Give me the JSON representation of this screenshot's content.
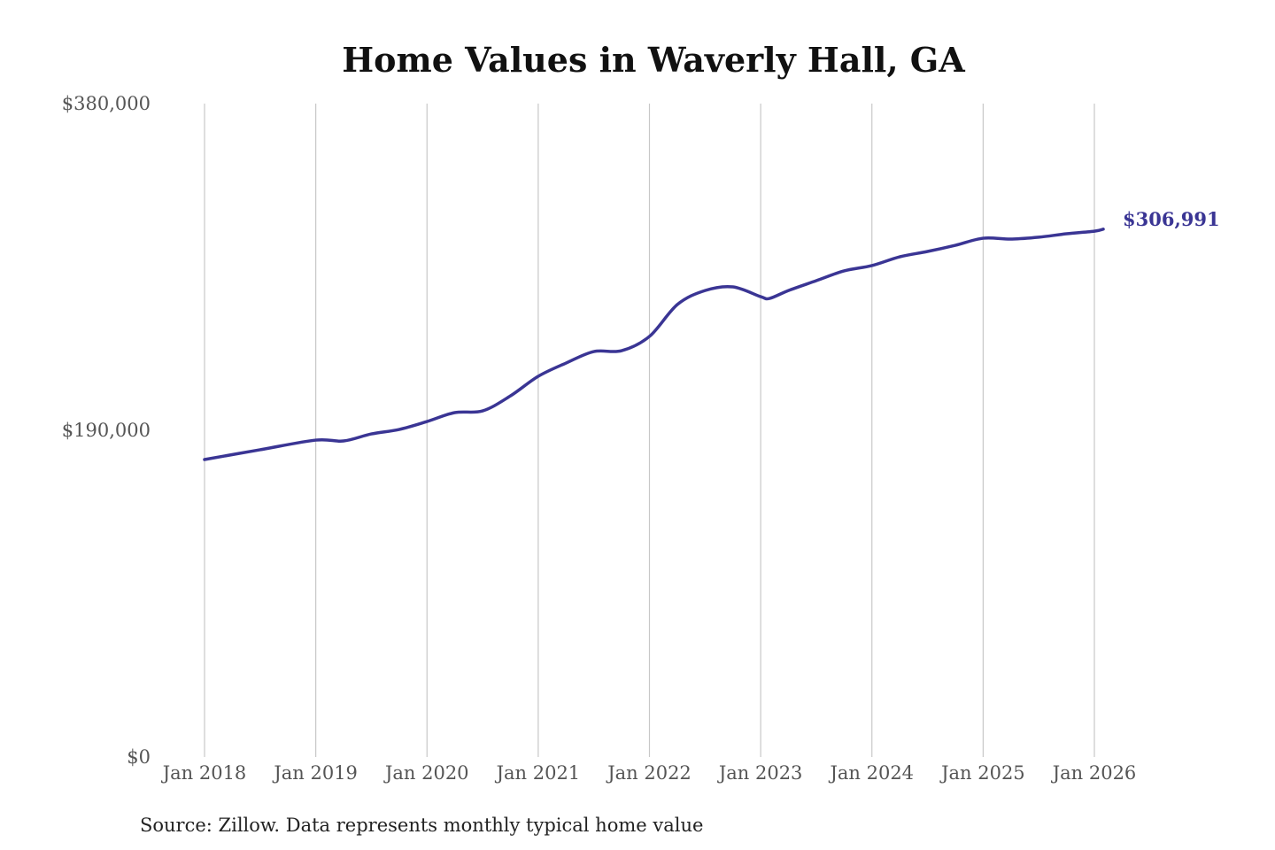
{
  "chart_data": {
    "type": "line",
    "title": "Home Values in Waverly Hall, GA",
    "xlabel": "",
    "ylabel": "",
    "ylim": [
      0,
      380000
    ],
    "y_ticks": [
      0,
      190000,
      380000
    ],
    "y_tick_labels": [
      "$0",
      "$190,000",
      "$380,000"
    ],
    "x_tick_labels": [
      "Jan 2018",
      "Jan 2019",
      "Jan 2020",
      "Jan 2021",
      "Jan 2022",
      "Jan 2023",
      "Jan 2024",
      "Jan 2025",
      "Jan 2026"
    ],
    "x_ticks": [
      2018,
      2019,
      2020,
      2021,
      2022,
      2023,
      2024,
      2025,
      2026
    ],
    "xlim": [
      2018,
      2026.1
    ],
    "grid": "vertical",
    "color": "#3a3594",
    "series": [
      {
        "name": "Typical home value",
        "x": [
          2018.0,
          2018.5,
          2019.0,
          2019.25,
          2019.5,
          2019.75,
          2020.0,
          2020.25,
          2020.5,
          2020.75,
          2021.0,
          2021.25,
          2021.5,
          2021.75,
          2022.0,
          2022.25,
          2022.5,
          2022.75,
          2023.0,
          2023.08,
          2023.25,
          2023.5,
          2023.75,
          2024.0,
          2024.25,
          2024.5,
          2024.75,
          2025.0,
          2025.25,
          2025.5,
          2025.75,
          2026.0,
          2026.08
        ],
        "values": [
          173000,
          178700,
          184300,
          183800,
          187900,
          190500,
          195100,
          200300,
          201300,
          210000,
          221400,
          229100,
          235800,
          236300,
          244600,
          263100,
          271300,
          273400,
          267700,
          266700,
          271300,
          277000,
          282700,
          285800,
          290900,
          294000,
          297600,
          301700,
          301200,
          302300,
          304300,
          305800,
          306991
        ]
      }
    ],
    "end_label": "$306,991",
    "source": "Source: Zillow. Data represents monthly typical home value"
  }
}
